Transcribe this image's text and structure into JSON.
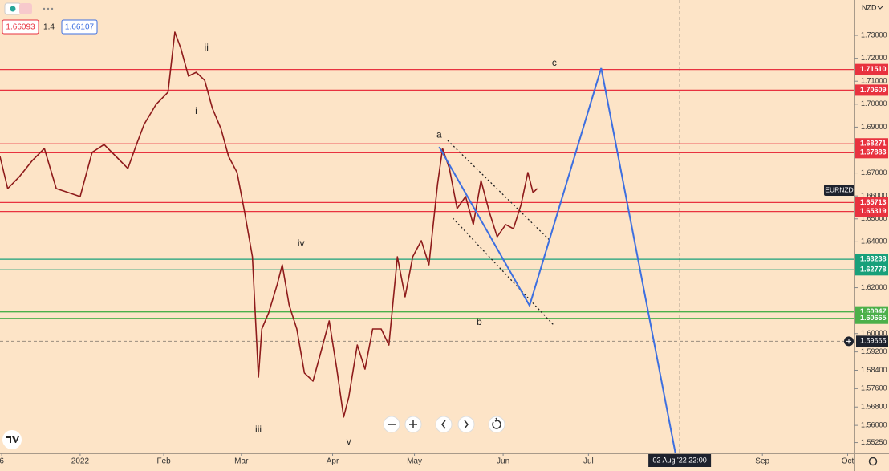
{
  "chart_data": {
    "type": "line",
    "symbol": "EURNZD",
    "last_price": 1.6625,
    "x": [
      0.06,
      0.15,
      0.29,
      0.44,
      0.58,
      0.72,
      0.86,
      1.0,
      1.14,
      1.28,
      1.42,
      1.56,
      1.66,
      1.75,
      1.89,
      2.03,
      2.11,
      2.18,
      2.27,
      2.36,
      2.46,
      2.55,
      2.65,
      2.74,
      2.84,
      2.93,
      3.02,
      3.09,
      3.13,
      3.21,
      3.31,
      3.37,
      3.45,
      3.54,
      3.63,
      3.73,
      3.82,
      3.92,
      4.01,
      4.09,
      4.15,
      4.25,
      4.34,
      4.43,
      4.53,
      4.62,
      4.72,
      4.81,
      4.9,
      5.0,
      5.09,
      5.19,
      5.25,
      5.33,
      5.42,
      5.52,
      5.61,
      5.7,
      5.8,
      5.89,
      5.99,
      6.08,
      6.17,
      6.25,
      6.31,
      6.36
    ],
    "values": [
      1.6772,
      1.6632,
      1.6685,
      1.6755,
      1.6807,
      1.6632,
      1.6615,
      1.6597,
      1.679,
      1.6824,
      1.6772,
      1.672,
      1.6824,
      1.6912,
      1.6999,
      1.7052,
      1.7314,
      1.7244,
      1.7122,
      1.7139,
      1.7104,
      1.6982,
      1.6894,
      1.6772,
      1.6702,
      1.6527,
      1.6335,
      1.581,
      1.602,
      1.609,
      1.6213,
      1.63,
      1.6125,
      1.602,
      1.5828,
      1.5793,
      1.5915,
      1.6055,
      1.5845,
      1.5636,
      1.5723,
      1.595,
      1.5845,
      1.602,
      1.602,
      1.595,
      1.6335,
      1.616,
      1.6335,
      1.6405,
      1.63,
      1.665,
      1.6807,
      1.672,
      1.6545,
      1.6597,
      1.6475,
      1.6667,
      1.6527,
      1.6422,
      1.6475,
      1.6457,
      1.6562,
      1.6702,
      1.6615,
      1.6632
    ],
    "color": "#8e1b1b",
    "projection": {
      "x": [
        5.21,
        6.27,
        7.11,
        7.98
      ],
      "values": [
        1.6814,
        1.6122,
        1.7157,
        1.5478
      ],
      "color": "#3d6fe0"
    },
    "channel": [
      {
        "x": [
          5.31,
          6.51
        ],
        "values": [
          1.6842,
          1.6405
        ]
      },
      {
        "x": [
          5.37,
          6.55
        ],
        "values": [
          1.6503,
          1.6038
        ]
      }
    ],
    "levels": [
      {
        "value": 1.7151,
        "label": "1.71510",
        "color": "#e8323f"
      },
      {
        "value": 1.70609,
        "label": "1.70609",
        "color": "#e8323f"
      },
      {
        "value": 1.68271,
        "label": "1.68271",
        "color": "#e8323f"
      },
      {
        "value": 1.67883,
        "label": "1.67883",
        "color": "#e8323f"
      },
      {
        "value": 1.65713,
        "label": "1.65713",
        "color": "#e8323f"
      },
      {
        "value": 1.65319,
        "label": "1.65319",
        "color": "#e8323f"
      },
      {
        "value": 1.63238,
        "label": "1.63238",
        "color": "#18a07a"
      },
      {
        "value": 1.62778,
        "label": "1.62778",
        "color": "#18a07a"
      },
      {
        "value": 1.60947,
        "label": "1.60947",
        "color": "#4cb04a"
      },
      {
        "value": 1.60665,
        "label": "1.60665",
        "color": "#4cb04a"
      }
    ],
    "annotations": [
      {
        "text": "ii",
        "x": 2.48,
        "y": 1.7244
      },
      {
        "text": "i",
        "x": 2.36,
        "y": 1.6968
      },
      {
        "text": "iii",
        "x": 3.09,
        "y": 1.558
      },
      {
        "text": "iv",
        "x": 3.59,
        "y": 1.6391
      },
      {
        "text": "v",
        "x": 4.15,
        "y": 1.5527
      },
      {
        "text": "a",
        "x": 5.21,
        "y": 1.6866
      },
      {
        "text": "b",
        "x": 5.68,
        "y": 1.6048
      },
      {
        "text": "c",
        "x": 6.56,
        "y": 1.7178
      }
    ],
    "crosshair": {
      "x": 8.03,
      "x_label": "02 Aug '22  22:00",
      "y": 1.59665
    },
    "xlim": [
      0.06,
      10.08
    ],
    "ylim": [
      1.5478,
      1.7454
    ],
    "xticks": [
      {
        "value": 0.08,
        "label": "6"
      },
      {
        "value": 1,
        "label": "2022"
      },
      {
        "value": 1.98,
        "label": "Feb"
      },
      {
        "value": 2.89,
        "label": "Mar"
      },
      {
        "value": 3.96,
        "label": "Apr"
      },
      {
        "value": 4.92,
        "label": "May"
      },
      {
        "value": 5.96,
        "label": "Jun"
      },
      {
        "value": 6.96,
        "label": "Jul"
      },
      {
        "value": 9.0,
        "label": "Sep"
      },
      {
        "value": 10.0,
        "label": "Oct"
      }
    ],
    "yticks": [
      {
        "value": 1.73,
        "label": "1.73000"
      },
      {
        "value": 1.72,
        "label": "1.72000"
      },
      {
        "value": 1.71,
        "label": "1.71000"
      },
      {
        "value": 1.7,
        "label": "1.70000"
      },
      {
        "value": 1.69,
        "label": "1.69000"
      },
      {
        "value": 1.67,
        "label": "1.67000"
      },
      {
        "value": 1.66,
        "label": "1.66000"
      },
      {
        "value": 1.65,
        "label": "1.65000"
      },
      {
        "value": 1.64,
        "label": "1.64000"
      },
      {
        "value": 1.62,
        "label": "1.62000"
      },
      {
        "value": 1.6,
        "label": "1.60000"
      },
      {
        "value": 1.592,
        "label": "1.59200"
      },
      {
        "value": 1.584,
        "label": "1.58400"
      },
      {
        "value": 1.576,
        "label": "1.57600"
      },
      {
        "value": 1.568,
        "label": "1.56800"
      },
      {
        "value": 1.56,
        "label": "1.56000"
      },
      {
        "value": 1.5525,
        "label": "1.55250"
      }
    ],
    "currency": "NZD",
    "bid": "1.66093",
    "spread": "1.4",
    "ask": "1.66107"
  }
}
